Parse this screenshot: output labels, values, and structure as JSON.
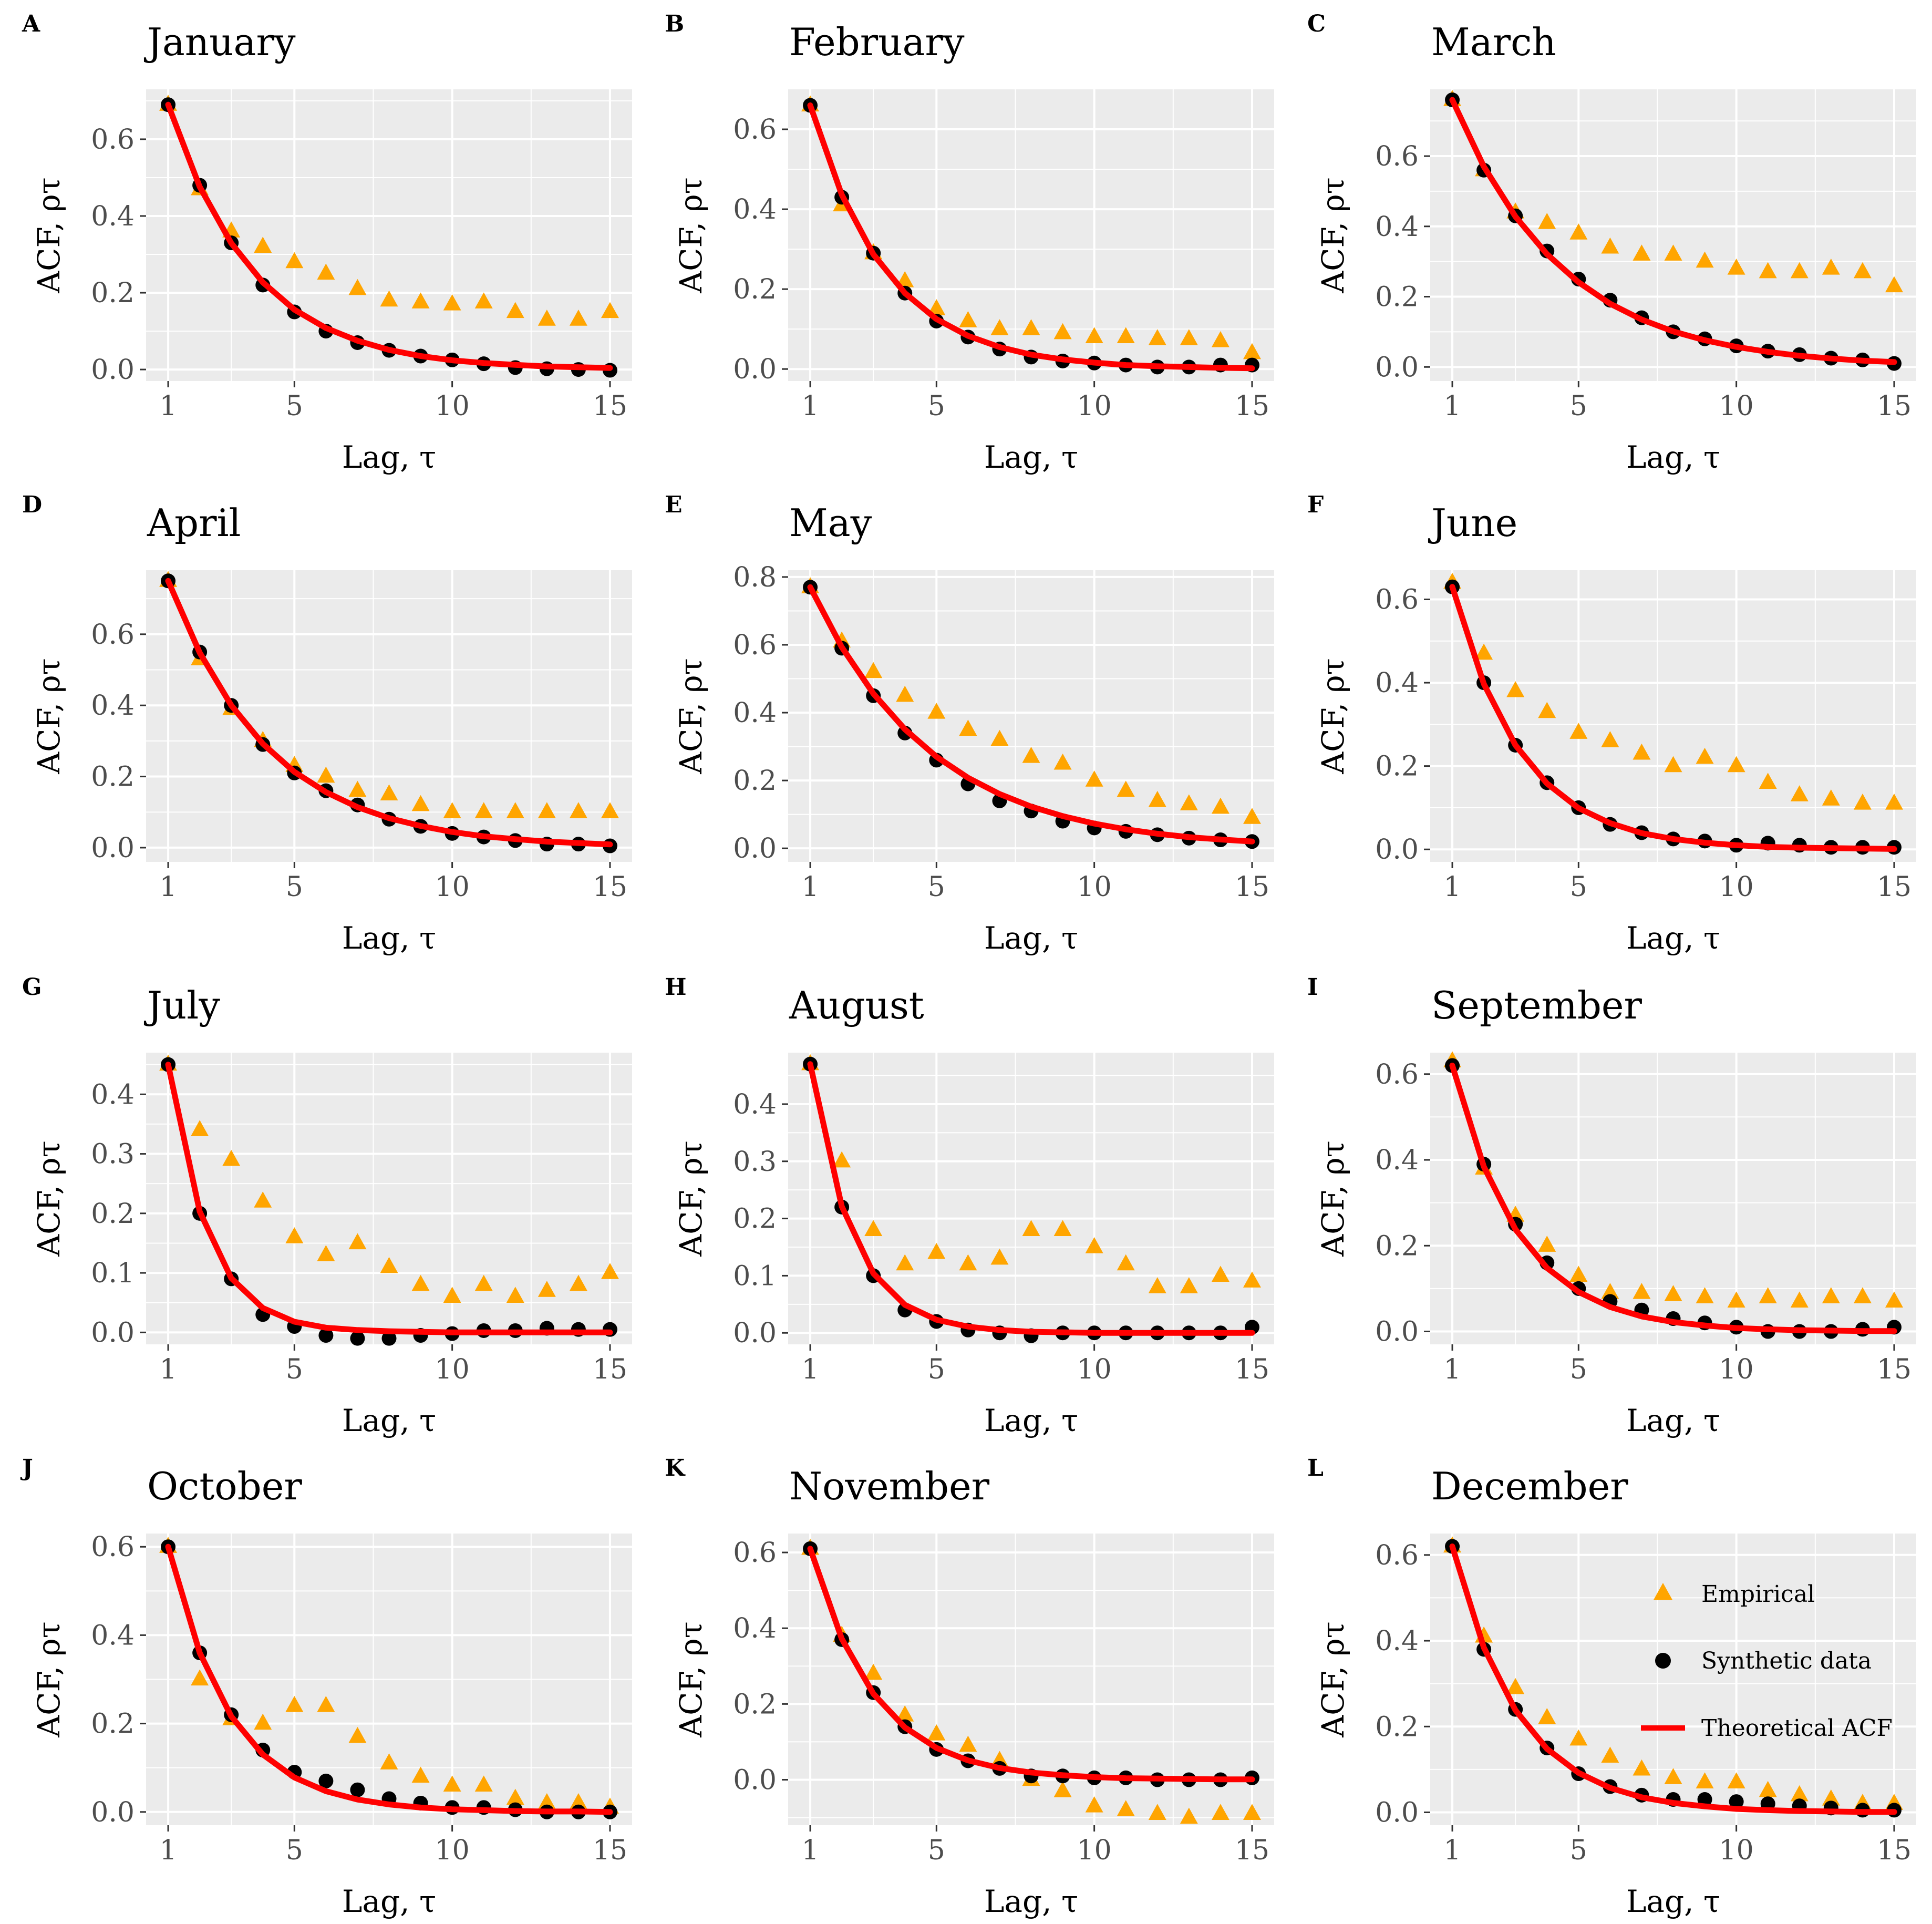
{
  "colors": {
    "empirical": "#FFA500",
    "synthetic": "#000000",
    "theoretical": "#FF0000",
    "panel_bg": "#EBEBEB",
    "grid": "#FFFFFF"
  },
  "legend": {
    "empirical": "Empirical",
    "synthetic": "Synthetic data",
    "theoretical": "Theoretical ACF"
  },
  "chart_data": [
    {
      "type": "scatter",
      "letter": "A",
      "title": "January",
      "xlabel": "Lag, τ",
      "ylabel": "ACF, ρτ",
      "xlim": [
        0.3,
        15.7
      ],
      "xticks": [
        1,
        5,
        10,
        15
      ],
      "ylim": [
        -0.03,
        0.73
      ],
      "yticks": [
        0.0,
        0.2,
        0.4,
        0.6
      ],
      "ytick_labels": [
        "0.0",
        "0.2",
        "0.4",
        "0.6"
      ],
      "empirical": [
        0.69,
        0.47,
        0.36,
        0.32,
        0.28,
        0.25,
        0.21,
        0.18,
        0.175,
        0.17,
        0.175,
        0.15,
        0.13,
        0.13,
        0.15
      ],
      "synthetic": [
        0.69,
        0.48,
        0.33,
        0.22,
        0.15,
        0.1,
        0.07,
        0.05,
        0.035,
        0.025,
        0.015,
        0.005,
        0.002,
        0.0,
        -0.002
      ],
      "theoretical": [
        0.69,
        0.476,
        0.329,
        0.227,
        0.156,
        0.108,
        0.075,
        0.051,
        0.035,
        0.024,
        0.017,
        0.012,
        0.008,
        0.006,
        0.004
      ]
    },
    {
      "type": "scatter",
      "letter": "B",
      "title": "February",
      "xlabel": "Lag, τ",
      "ylabel": "ACF, ρτ",
      "xlim": [
        0.3,
        15.7
      ],
      "xticks": [
        1,
        5,
        10,
        15
      ],
      "ylim": [
        -0.03,
        0.7
      ],
      "yticks": [
        0.0,
        0.2,
        0.4,
        0.6
      ],
      "ytick_labels": [
        "0.0",
        "0.2",
        "0.4",
        "0.6"
      ],
      "empirical": [
        0.66,
        0.41,
        0.29,
        0.22,
        0.15,
        0.12,
        0.1,
        0.1,
        0.09,
        0.08,
        0.08,
        0.075,
        0.075,
        0.07,
        0.04
      ],
      "synthetic": [
        0.66,
        0.43,
        0.29,
        0.19,
        0.12,
        0.08,
        0.05,
        0.03,
        0.02,
        0.015,
        0.01,
        0.005,
        0.005,
        0.01,
        0.01
      ],
      "theoretical": [
        0.66,
        0.436,
        0.287,
        0.19,
        0.125,
        0.083,
        0.055,
        0.036,
        0.024,
        0.016,
        0.01,
        0.007,
        0.005,
        0.003,
        0.002
      ]
    },
    {
      "type": "scatter",
      "letter": "C",
      "title": "March",
      "xlabel": "Lag, τ",
      "ylabel": "ACF, ρτ",
      "xlim": [
        0.3,
        15.7
      ],
      "xticks": [
        1,
        5,
        10,
        15
      ],
      "ylim": [
        -0.04,
        0.79
      ],
      "yticks": [
        0.0,
        0.2,
        0.4,
        0.6
      ],
      "ytick_labels": [
        "0.0",
        "0.2",
        "0.4",
        "0.6"
      ],
      "empirical": [
        0.76,
        0.56,
        0.44,
        0.41,
        0.38,
        0.34,
        0.32,
        0.32,
        0.3,
        0.28,
        0.27,
        0.27,
        0.28,
        0.27,
        0.23
      ],
      "synthetic": [
        0.76,
        0.56,
        0.43,
        0.33,
        0.25,
        0.19,
        0.14,
        0.1,
        0.08,
        0.06,
        0.045,
        0.035,
        0.025,
        0.02,
        0.01
      ],
      "theoretical": [
        0.76,
        0.57,
        0.428,
        0.321,
        0.241,
        0.18,
        0.135,
        0.101,
        0.076,
        0.057,
        0.043,
        0.032,
        0.024,
        0.018,
        0.014
      ]
    },
    {
      "type": "scatter",
      "letter": "D",
      "title": "April",
      "xlabel": "Lag, τ",
      "ylabel": "ACF, ρτ",
      "xlim": [
        0.3,
        15.7
      ],
      "xticks": [
        1,
        5,
        10,
        15
      ],
      "ylim": [
        -0.04,
        0.78
      ],
      "yticks": [
        0.0,
        0.2,
        0.4,
        0.6
      ],
      "ytick_labels": [
        "0.0",
        "0.2",
        "0.4",
        "0.6"
      ],
      "empirical": [
        0.75,
        0.53,
        0.39,
        0.3,
        0.23,
        0.2,
        0.16,
        0.15,
        0.12,
        0.1,
        0.1,
        0.1,
        0.1,
        0.1,
        0.1
      ],
      "synthetic": [
        0.75,
        0.55,
        0.4,
        0.29,
        0.21,
        0.16,
        0.12,
        0.08,
        0.06,
        0.04,
        0.03,
        0.02,
        0.01,
        0.01,
        0.005
      ],
      "theoretical": [
        0.75,
        0.548,
        0.4,
        0.292,
        0.213,
        0.156,
        0.114,
        0.083,
        0.061,
        0.044,
        0.032,
        0.024,
        0.017,
        0.013,
        0.009
      ]
    },
    {
      "type": "scatter",
      "letter": "E",
      "title": "May",
      "xlabel": "Lag, τ",
      "ylabel": "ACF, ρτ",
      "xlim": [
        0.3,
        15.7
      ],
      "xticks": [
        1,
        5,
        10,
        15
      ],
      "ylim": [
        -0.04,
        0.82
      ],
      "yticks": [
        0.0,
        0.2,
        0.4,
        0.6,
        0.8
      ],
      "ytick_labels": [
        "0.0",
        "0.2",
        "0.4",
        "0.6",
        "0.8"
      ],
      "empirical": [
        0.77,
        0.61,
        0.52,
        0.45,
        0.4,
        0.35,
        0.32,
        0.27,
        0.25,
        0.2,
        0.17,
        0.14,
        0.13,
        0.12,
        0.09
      ],
      "synthetic": [
        0.77,
        0.59,
        0.45,
        0.34,
        0.26,
        0.19,
        0.14,
        0.11,
        0.08,
        0.06,
        0.05,
        0.04,
        0.03,
        0.025,
        0.02
      ],
      "theoretical": [
        0.77,
        0.593,
        0.456,
        0.351,
        0.27,
        0.208,
        0.16,
        0.123,
        0.095,
        0.073,
        0.056,
        0.043,
        0.033,
        0.026,
        0.02
      ]
    },
    {
      "type": "scatter",
      "letter": "F",
      "title": "June",
      "xlabel": "Lag, τ",
      "ylabel": "ACF, ρτ",
      "xlim": [
        0.3,
        15.7
      ],
      "xticks": [
        1,
        5,
        10,
        15
      ],
      "ylim": [
        -0.03,
        0.67
      ],
      "yticks": [
        0.0,
        0.2,
        0.4,
        0.6
      ],
      "ytick_labels": [
        "0.0",
        "0.2",
        "0.4",
        "0.6"
      ],
      "empirical": [
        0.64,
        0.47,
        0.38,
        0.33,
        0.28,
        0.26,
        0.23,
        0.2,
        0.22,
        0.2,
        0.16,
        0.13,
        0.12,
        0.11,
        0.11
      ],
      "synthetic": [
        0.63,
        0.4,
        0.25,
        0.16,
        0.1,
        0.06,
        0.04,
        0.025,
        0.02,
        0.01,
        0.015,
        0.01,
        0.005,
        0.005,
        0.005
      ],
      "theoretical": [
        0.63,
        0.397,
        0.25,
        0.158,
        0.099,
        0.063,
        0.039,
        0.025,
        0.016,
        0.01,
        0.006,
        0.004,
        0.003,
        0.002,
        0.001
      ]
    },
    {
      "type": "scatter",
      "letter": "G",
      "title": "July",
      "xlabel": "Lag, τ",
      "ylabel": "ACF, ρτ",
      "xlim": [
        0.3,
        15.7
      ],
      "xticks": [
        1,
        5,
        10,
        15
      ],
      "ylim": [
        -0.02,
        0.47
      ],
      "yticks": [
        0.0,
        0.1,
        0.2,
        0.3,
        0.4
      ],
      "ytick_labels": [
        "0.0",
        "0.1",
        "0.2",
        "0.3",
        "0.4"
      ],
      "empirical": [
        0.45,
        0.34,
        0.29,
        0.22,
        0.16,
        0.13,
        0.15,
        0.11,
        0.08,
        0.06,
        0.08,
        0.06,
        0.07,
        0.08,
        0.1
      ],
      "synthetic": [
        0.45,
        0.2,
        0.09,
        0.03,
        0.01,
        -0.005,
        -0.01,
        -0.01,
        -0.005,
        -0.002,
        0.003,
        0.003,
        0.007,
        0.005,
        0.005
      ],
      "theoretical": [
        0.45,
        0.203,
        0.091,
        0.041,
        0.018,
        0.008,
        0.004,
        0.002,
        0.001,
        0.0,
        0.0,
        0.0,
        0.0,
        0.0,
        0.0
      ]
    },
    {
      "type": "scatter",
      "letter": "H",
      "title": "August",
      "xlabel": "Lag, τ",
      "ylabel": "ACF, ρτ",
      "xlim": [
        0.3,
        15.7
      ],
      "xticks": [
        1,
        5,
        10,
        15
      ],
      "ylim": [
        -0.02,
        0.49
      ],
      "yticks": [
        0.0,
        0.1,
        0.2,
        0.3,
        0.4
      ],
      "ytick_labels": [
        "0.0",
        "0.1",
        "0.2",
        "0.3",
        "0.4"
      ],
      "empirical": [
        0.47,
        0.3,
        0.18,
        0.12,
        0.14,
        0.12,
        0.13,
        0.18,
        0.18,
        0.15,
        0.12,
        0.08,
        0.08,
        0.1,
        0.09
      ],
      "synthetic": [
        0.47,
        0.22,
        0.1,
        0.04,
        0.02,
        0.005,
        0.0,
        -0.005,
        0.0,
        0.0,
        0.0,
        0.0,
        0.0,
        0.0,
        0.01
      ],
      "theoretical": [
        0.47,
        0.221,
        0.104,
        0.049,
        0.023,
        0.011,
        0.005,
        0.002,
        0.001,
        0.0,
        0.0,
        0.0,
        0.0,
        0.0,
        0.0
      ]
    },
    {
      "type": "scatter",
      "letter": "I",
      "title": "September",
      "xlabel": "Lag, τ",
      "ylabel": "ACF, ρτ",
      "xlim": [
        0.3,
        15.7
      ],
      "xticks": [
        1,
        5,
        10,
        15
      ],
      "ylim": [
        -0.03,
        0.65
      ],
      "yticks": [
        0.0,
        0.2,
        0.4,
        0.6
      ],
      "ytick_labels": [
        "0.0",
        "0.2",
        "0.4",
        "0.6"
      ],
      "empirical": [
        0.63,
        0.38,
        0.27,
        0.2,
        0.13,
        0.09,
        0.09,
        0.085,
        0.08,
        0.07,
        0.08,
        0.07,
        0.08,
        0.08,
        0.07
      ],
      "synthetic": [
        0.62,
        0.39,
        0.25,
        0.16,
        0.1,
        0.07,
        0.05,
        0.03,
        0.02,
        0.01,
        0.0,
        0.0,
        0.0,
        0.005,
        0.01
      ],
      "theoretical": [
        0.62,
        0.384,
        0.238,
        0.148,
        0.092,
        0.057,
        0.035,
        0.022,
        0.014,
        0.008,
        0.005,
        0.003,
        0.002,
        0.001,
        0.001
      ]
    },
    {
      "type": "scatter",
      "letter": "J",
      "title": "October",
      "xlabel": "Lag, τ",
      "ylabel": "ACF, ρτ",
      "xlim": [
        0.3,
        15.7
      ],
      "xticks": [
        1,
        5,
        10,
        15
      ],
      "ylim": [
        -0.03,
        0.63
      ],
      "yticks": [
        0.0,
        0.2,
        0.4,
        0.6
      ],
      "ytick_labels": [
        "0.0",
        "0.2",
        "0.4",
        "0.6"
      ],
      "empirical": [
        0.6,
        0.3,
        0.21,
        0.2,
        0.24,
        0.24,
        0.17,
        0.11,
        0.08,
        0.06,
        0.06,
        0.03,
        0.02,
        0.02,
        0.01
      ],
      "synthetic": [
        0.6,
        0.36,
        0.22,
        0.14,
        0.09,
        0.07,
        0.05,
        0.03,
        0.02,
        0.01,
        0.01,
        0.005,
        0.0,
        0.0,
        0.0
      ],
      "theoretical": [
        0.6,
        0.36,
        0.216,
        0.13,
        0.078,
        0.047,
        0.028,
        0.017,
        0.01,
        0.006,
        0.004,
        0.002,
        0.001,
        0.001,
        0.0
      ]
    },
    {
      "type": "scatter",
      "letter": "K",
      "title": "November",
      "xlabel": "Lag, τ",
      "ylabel": "ACF, ρτ",
      "xlim": [
        0.3,
        15.7
      ],
      "xticks": [
        1,
        5,
        10,
        15
      ],
      "ylim": [
        -0.12,
        0.65
      ],
      "yticks": [
        0.0,
        0.2,
        0.4,
        0.6
      ],
      "ytick_labels": [
        "0.0",
        "0.2",
        "0.4",
        "0.6"
      ],
      "empirical": [
        0.61,
        0.38,
        0.28,
        0.17,
        0.12,
        0.09,
        0.05,
        0.0,
        -0.03,
        -0.07,
        -0.08,
        -0.09,
        -0.1,
        -0.09,
        -0.09
      ],
      "synthetic": [
        0.61,
        0.37,
        0.23,
        0.14,
        0.08,
        0.05,
        0.03,
        0.01,
        0.01,
        0.005,
        0.005,
        0.0,
        0.0,
        0.0,
        0.005
      ],
      "theoretical": [
        0.61,
        0.372,
        0.227,
        0.138,
        0.084,
        0.051,
        0.031,
        0.019,
        0.012,
        0.007,
        0.004,
        0.003,
        0.002,
        0.001,
        0.001
      ]
    },
    {
      "type": "scatter",
      "letter": "L",
      "title": "December",
      "xlabel": "Lag, τ",
      "ylabel": "ACF, ρτ",
      "xlim": [
        0.3,
        15.7
      ],
      "xticks": [
        1,
        5,
        10,
        15
      ],
      "ylim": [
        -0.03,
        0.65
      ],
      "yticks": [
        0.0,
        0.2,
        0.4,
        0.6
      ],
      "ytick_labels": [
        "0.0",
        "0.2",
        "0.4",
        "0.6"
      ],
      "empirical": [
        0.62,
        0.41,
        0.29,
        0.22,
        0.17,
        0.13,
        0.1,
        0.08,
        0.07,
        0.07,
        0.05,
        0.04,
        0.03,
        0.02,
        0.02
      ],
      "synthetic": [
        0.62,
        0.38,
        0.24,
        0.15,
        0.09,
        0.06,
        0.04,
        0.03,
        0.03,
        0.025,
        0.02,
        0.015,
        0.01,
        0.005,
        0.005
      ],
      "theoretical": [
        0.62,
        0.384,
        0.238,
        0.148,
        0.092,
        0.057,
        0.035,
        0.022,
        0.014,
        0.008,
        0.005,
        0.003,
        0.002,
        0.001,
        0.001
      ]
    }
  ]
}
